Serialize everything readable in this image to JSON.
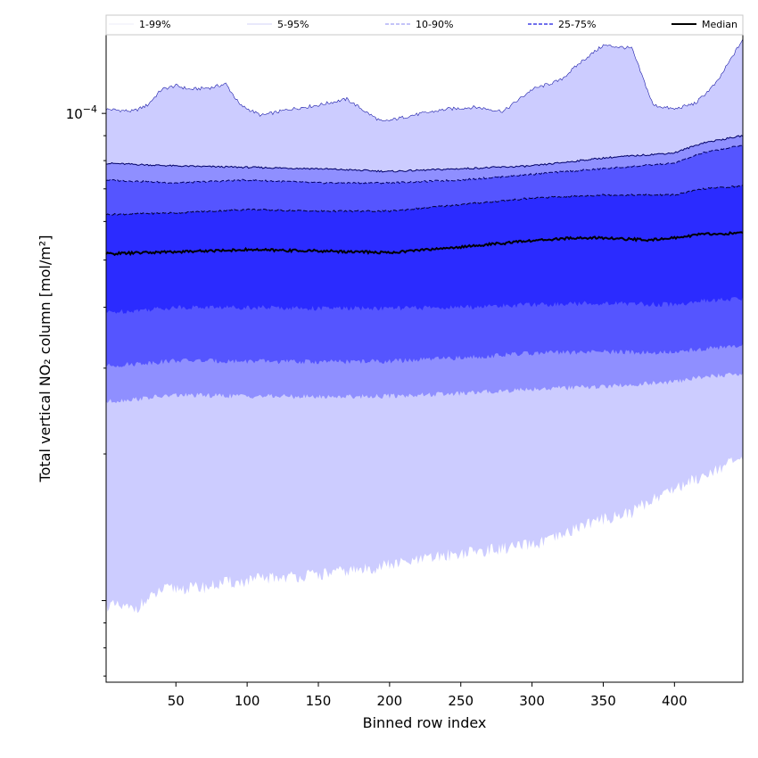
{
  "chart_data": {
    "type": "area",
    "xlabel": "Binned row index",
    "ylabel": "Total vertical NO₂ column [mol/m²]",
    "xlim": [
      1,
      448
    ],
    "ylim": [
      6.8e-06,
      0.000145
    ],
    "yscale": "log",
    "x_ticks": [
      50,
      100,
      150,
      200,
      250,
      300,
      350,
      400
    ],
    "y_major_tick": {
      "value": 0.0001,
      "base": "10",
      "exponent": "−4"
    },
    "legend": {
      "position": "top",
      "entries": [
        {
          "label": "1-99%",
          "color": "#d9d9f6",
          "style": "solid"
        },
        {
          "label": "5-95%",
          "color": "#a8a8f0",
          "style": "solid"
        },
        {
          "label": "10-90%",
          "color": "#8a8af2",
          "style": "dashed"
        },
        {
          "label": "25-75%",
          "color": "#4040e6",
          "style": "dashed"
        },
        {
          "label": "Median",
          "color": "#000000",
          "style": "solid"
        }
      ]
    },
    "band_colors": {
      "p1_99": "#ccccff",
      "p5_95": "#8f8fff",
      "p10_90": "#5555ff",
      "p25_75": "#2b2bff",
      "median": "#000000"
    },
    "series": [
      {
        "name": "1-99%",
        "kind": "band",
        "x": [
          1,
          20,
          30,
          40,
          50,
          60,
          75,
          85,
          95,
          110,
          130,
          150,
          170,
          185,
          195,
          215,
          240,
          260,
          280,
          300,
          320,
          335,
          350,
          370,
          385,
          400,
          415,
          430,
          448
        ],
        "upper": [
          0.000102,
          0.000101,
          0.000104,
          0.000112,
          0.000114,
          0.000112,
          0.000113,
          0.000115,
          0.000104,
          9.9e-05,
          0.000102,
          0.000104,
          0.000107,
          0.0001,
          9.6e-05,
          9.9e-05,
          0.000102,
          0.000103,
          0.000101,
          0.000112,
          0.000117,
          0.000128,
          0.000138,
          0.000136,
          0.000104,
          0.000102,
          0.000105,
          0.000116,
          0.000142
        ],
        "lower": [
          9.8e-06,
          9.6e-06,
          1e-05,
          1.05e-05,
          1.06e-05,
          1.06e-05,
          1.07e-05,
          1.09e-05,
          1.09e-05,
          1.11e-05,
          1.12e-05,
          1.13e-05,
          1.15e-05,
          1.16e-05,
          1.18e-05,
          1.2e-05,
          1.24e-05,
          1.26e-05,
          1.28e-05,
          1.3e-05,
          1.35e-05,
          1.43e-05,
          1.47e-05,
          1.52e-05,
          1.62e-05,
          1.7e-05,
          1.78e-05,
          1.87e-05,
          1.95e-05
        ]
      },
      {
        "name": "5-95%",
        "kind": "band",
        "x": [
          1,
          50,
          100,
          150,
          200,
          250,
          300,
          350,
          400,
          420,
          448
        ],
        "upper": [
          7.9e-05,
          7.8e-05,
          7.75e-05,
          7.7e-05,
          7.6e-05,
          7.7e-05,
          7.8e-05,
          8.1e-05,
          8.3e-05,
          8.7e-05,
          9e-05
        ],
        "lower": [
          2.56e-05,
          2.64e-05,
          2.63e-05,
          2.62e-05,
          2.63e-05,
          2.66e-05,
          2.72e-05,
          2.75e-05,
          2.81e-05,
          2.88e-05,
          2.92e-05
        ]
      },
      {
        "name": "10-90%",
        "kind": "band",
        "x": [
          1,
          50,
          100,
          150,
          200,
          250,
          300,
          350,
          400,
          420,
          448
        ],
        "upper": [
          7.3e-05,
          7.2e-05,
          7.3e-05,
          7.2e-05,
          7.2e-05,
          7.3e-05,
          7.5e-05,
          7.7e-05,
          7.9e-05,
          8.3e-05,
          8.6e-05
        ],
        "lower": [
          3.03e-05,
          3.11e-05,
          3.1e-05,
          3.09e-05,
          3.1e-05,
          3.15e-05,
          3.22e-05,
          3.24e-05,
          3.23e-05,
          3.29e-05,
          3.33e-05
        ]
      },
      {
        "name": "25-75%",
        "kind": "band",
        "x": [
          1,
          50,
          100,
          150,
          200,
          250,
          300,
          350,
          400,
          420,
          448
        ],
        "upper": [
          6.2e-05,
          6.25e-05,
          6.35e-05,
          6.3e-05,
          6.3e-05,
          6.5e-05,
          6.7e-05,
          6.8e-05,
          6.8e-05,
          7e-05,
          7.1e-05
        ],
        "lower": [
          3.9e-05,
          4e-05,
          4e-05,
          3.98e-05,
          3.98e-05,
          4e-05,
          4.05e-05,
          4.08e-05,
          4.05e-05,
          4.12e-05,
          4.17e-05
        ]
      },
      {
        "name": "Median",
        "kind": "line",
        "x": [
          1,
          50,
          100,
          150,
          200,
          250,
          300,
          330,
          350,
          380,
          400,
          420,
          448
        ],
        "values": [
          5.15e-05,
          5.2e-05,
          5.25e-05,
          5.22e-05,
          5.18e-05,
          5.32e-05,
          5.48e-05,
          5.55e-05,
          5.55e-05,
          5.5e-05,
          5.55e-05,
          5.65e-05,
          5.68e-05
        ]
      }
    ]
  }
}
